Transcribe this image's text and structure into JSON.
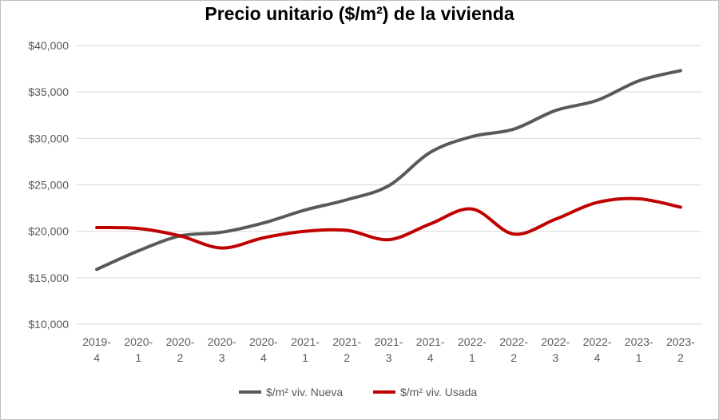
{
  "chart_data": {
    "type": "line",
    "title": "Precio unitario ($/m²) de la vivienda",
    "categories": [
      [
        "2019-",
        "4"
      ],
      [
        "2020-",
        "1"
      ],
      [
        "2020-",
        "2"
      ],
      [
        "2020-",
        "3"
      ],
      [
        "2020-",
        "4"
      ],
      [
        "2021-",
        "1"
      ],
      [
        "2021-",
        "2"
      ],
      [
        "2021-",
        "3"
      ],
      [
        "2021-",
        "4"
      ],
      [
        "2022-",
        "1"
      ],
      [
        "2022-",
        "2"
      ],
      [
        "2022-",
        "3"
      ],
      [
        "2022-",
        "4"
      ],
      [
        "2023-",
        "1"
      ],
      [
        "2023-",
        "2"
      ]
    ],
    "ylim": [
      10000,
      40000
    ],
    "yticks": [
      10000,
      15000,
      20000,
      25000,
      30000,
      35000,
      40000
    ],
    "ytick_labels": [
      "$10,000",
      "$15,000",
      "$20,000",
      "$25,000",
      "$30,000",
      "$35,000",
      "$40,000"
    ],
    "grid": true,
    "legend_position": "bottom",
    "series": [
      {
        "name": "$/m² viv. Nueva",
        "color": "#595959",
        "values": [
          15900,
          17900,
          19500,
          19900,
          20900,
          22300,
          23400,
          24900,
          28500,
          30200,
          31000,
          33000,
          34100,
          36200,
          37300
        ]
      },
      {
        "name": "$/m² viv. Usada",
        "color": "#c00000",
        "values": [
          20400,
          20300,
          19500,
          18200,
          19300,
          20000,
          20100,
          19100,
          20800,
          22400,
          19700,
          21300,
          23100,
          23500,
          22600
        ]
      }
    ]
  }
}
